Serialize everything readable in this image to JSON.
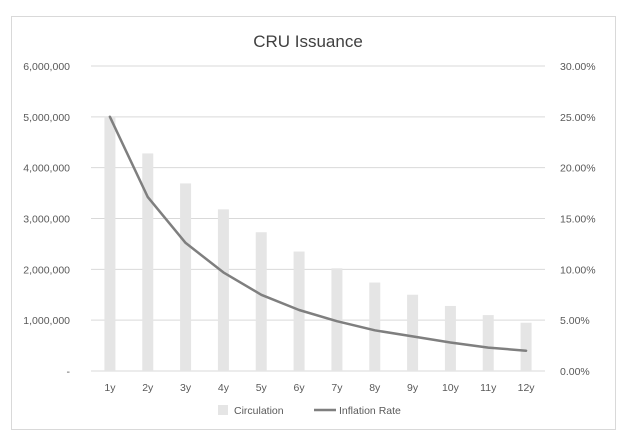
{
  "chart_data": {
    "type": "bar",
    "title": "CRU Issuance",
    "categories": [
      "1y",
      "2y",
      "3y",
      "4y",
      "5y",
      "6y",
      "7y",
      "8y",
      "9y",
      "10y",
      "11y",
      "12y"
    ],
    "series": [
      {
        "name": "Circulation",
        "type": "bar",
        "axis": "left",
        "color": "#e5e5e5",
        "values": [
          5000000,
          4280000,
          3690000,
          3180000,
          2730000,
          2350000,
          2020000,
          1740000,
          1500000,
          1280000,
          1100000,
          950000
        ]
      },
      {
        "name": "Inflation Rate",
        "type": "line",
        "axis": "right",
        "color": "#7f7f7f",
        "values": [
          25.0,
          17.1,
          12.6,
          9.7,
          7.5,
          6.0,
          4.9,
          4.0,
          3.4,
          2.8,
          2.3,
          2.0
        ]
      }
    ],
    "y_left": {
      "ylim": [
        0,
        6000000
      ],
      "tick_values": [
        0,
        1000000,
        2000000,
        3000000,
        4000000,
        5000000,
        6000000
      ],
      "tick_labels": [
        "-",
        "1,000,000",
        "2,000,000",
        "3,000,000",
        "4,000,000",
        "5,000,000",
        "6,000,000"
      ]
    },
    "y_right": {
      "ylim": [
        0,
        30
      ],
      "tick_values": [
        0,
        5,
        10,
        15,
        20,
        25,
        30
      ],
      "tick_labels": [
        "0.00%",
        "5.00%",
        "10.00%",
        "15.00%",
        "20.00%",
        "25.00%",
        "30.00%"
      ]
    },
    "grid": true,
    "legend_position": "bottom"
  }
}
